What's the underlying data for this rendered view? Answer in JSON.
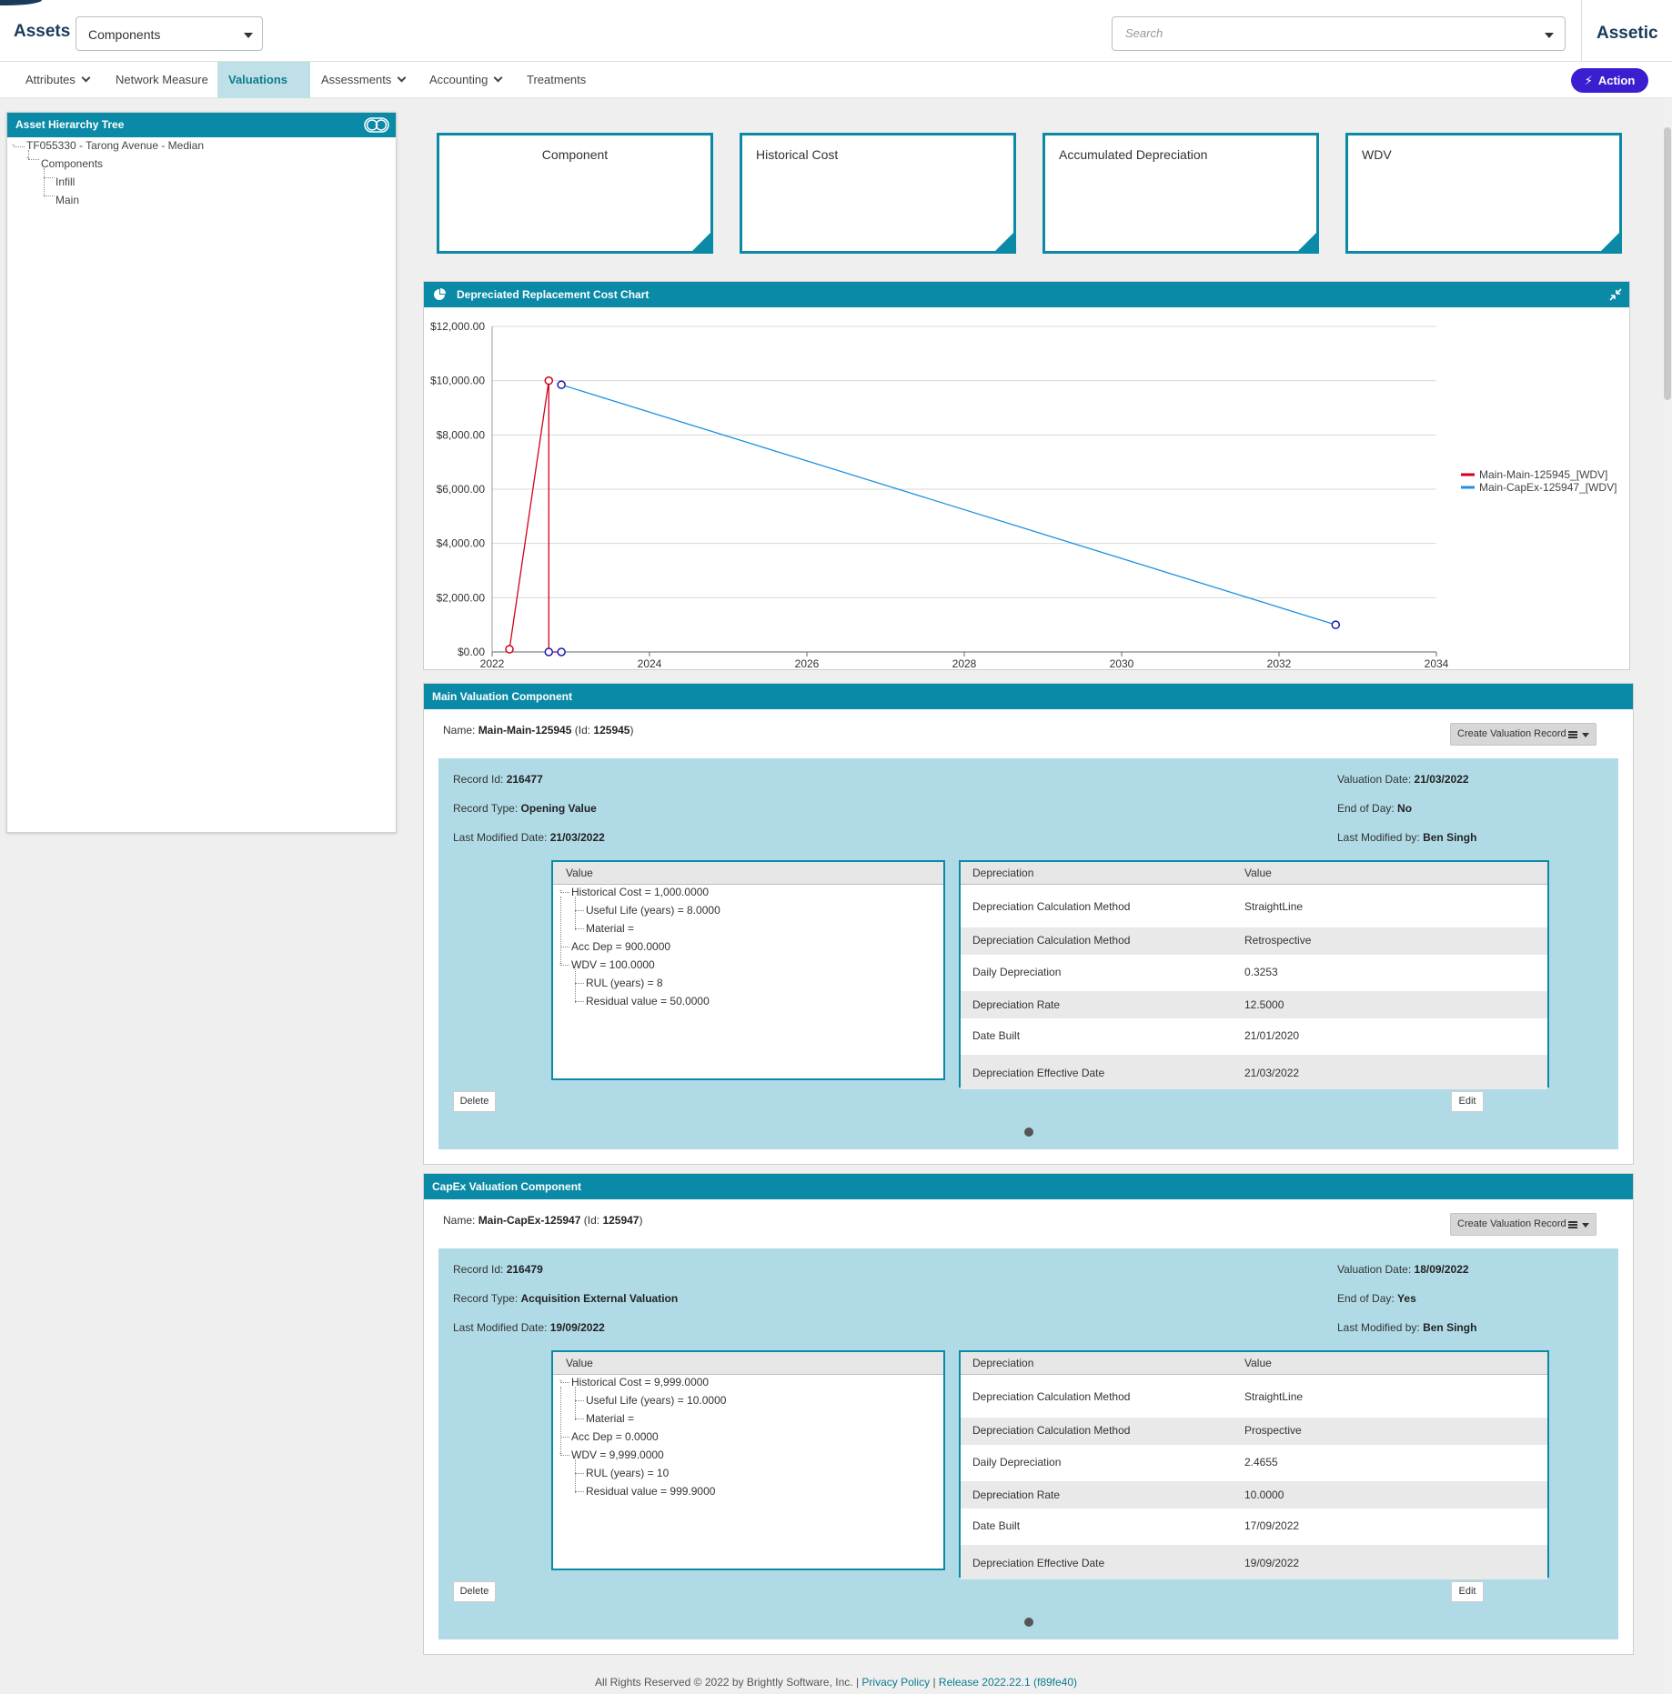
{
  "header": {
    "app_title": "Assets",
    "type_select_value": "Components",
    "search_placeholder": "Search",
    "brand": "Assetic"
  },
  "nav": {
    "items": [
      {
        "label": "Attributes",
        "has_dropdown": true
      },
      {
        "label": "Network Measure",
        "has_dropdown": false
      },
      {
        "label": "Valuations",
        "has_dropdown": true,
        "active": true
      },
      {
        "label": "Assessments",
        "has_dropdown": true
      },
      {
        "label": "Accounting",
        "has_dropdown": true
      },
      {
        "label": "Treatments",
        "has_dropdown": false
      }
    ],
    "action_label": "Action"
  },
  "tree": {
    "title": "Asset Hierarchy Tree",
    "root": "TF055330 - Tarong Avenue - Median",
    "group": "Components",
    "children": [
      "Infill",
      "Main"
    ]
  },
  "cards": [
    {
      "label": "Component"
    },
    {
      "label": "Historical Cost"
    },
    {
      "label": "Accumulated Depreciation"
    },
    {
      "label": "WDV"
    }
  ],
  "chart": {
    "title": "Depreciated Replacement Cost Chart"
  },
  "chart_data": {
    "type": "line",
    "title": "Depreciated Replacement Cost Chart",
    "xlabel": "",
    "ylabel": "",
    "xlim": [
      2022,
      2034
    ],
    "ylim": [
      0,
      12000
    ],
    "x_ticks": [
      "2022",
      "2024",
      "2026",
      "2028",
      "2030",
      "2032",
      "2034"
    ],
    "y_ticks": [
      "$0.00",
      "$2,000.00",
      "$4,000.00",
      "$6,000.00",
      "$8,000.00",
      "$10,000.00",
      "$12,000.00"
    ],
    "grid": true,
    "legend_position": "right",
    "series": [
      {
        "name": "Main-Main-125945_[WDV]",
        "color": "#d0021b",
        "points": [
          {
            "x": 2022.22,
            "y": 100
          },
          {
            "x": 2022.72,
            "y": 10000
          },
          {
            "x": 2022.72,
            "y": 0
          },
          {
            "x": 2022.88,
            "y": 0
          }
        ]
      },
      {
        "name": "Main-CapEx-125947_[WDV]",
        "color": "#1e90e0",
        "points": [
          {
            "x": 2022.88,
            "y": 9850
          },
          {
            "x": 2032.72,
            "y": 1000
          }
        ]
      }
    ],
    "marker_color": "#1b1bb0"
  },
  "components": [
    {
      "title": "Main Valuation Component",
      "name_label": "Name:",
      "name": "Main-Main-125945",
      "id_label": "Id:",
      "id": "125945",
      "create_label": "Create Valuation Record",
      "record_id_label": "Record Id:",
      "record_id": "216477",
      "record_type_label": "Record Type:",
      "record_type": "Opening Value",
      "last_modified_date_label": "Last Modified Date:",
      "last_modified_date": "21/03/2022",
      "valuation_date_label": "Valuation Date:",
      "valuation_date": "21/03/2022",
      "end_of_day_label": "End of Day:",
      "end_of_day": "No",
      "last_modified_by_label": "Last Modified by:",
      "last_modified_by": "Ben Singh",
      "value_header": "Value",
      "value_tree": {
        "historical_cost": "Historical Cost = 1,000.0000",
        "useful_life": "Useful Life (years) = 8.0000",
        "material": "Material =",
        "acc_dep": "Acc Dep = 900.0000",
        "wdv": "WDV = 100.0000",
        "rul": "RUL (years) = 8",
        "residual": "Residual value = 50.0000"
      },
      "dep_headers": [
        "Depreciation",
        "Value"
      ],
      "dep_rows": [
        [
          "Depreciation Calculation Method",
          "StraightLine"
        ],
        [
          "Depreciation Calculation Method",
          "Retrospective"
        ],
        [
          "Daily Depreciation",
          "0.3253"
        ],
        [
          "Depreciation Rate",
          "12.5000"
        ],
        [
          "Date Built",
          "21/01/2020"
        ],
        [
          "Depreciation Effective Date",
          "21/03/2022"
        ]
      ],
      "delete_label": "Delete",
      "edit_label": "Edit"
    },
    {
      "title": "CapEx Valuation Component",
      "name_label": "Name:",
      "name": "Main-CapEx-125947",
      "id_label": "Id:",
      "id": "125947",
      "create_label": "Create Valuation Record",
      "record_id_label": "Record Id:",
      "record_id": "216479",
      "record_type_label": "Record Type:",
      "record_type": "Acquisition External Valuation",
      "last_modified_date_label": "Last Modified Date:",
      "last_modified_date": "19/09/2022",
      "valuation_date_label": "Valuation Date:",
      "valuation_date": "18/09/2022",
      "end_of_day_label": "End of Day:",
      "end_of_day": "Yes",
      "last_modified_by_label": "Last Modified by:",
      "last_modified_by": "Ben Singh",
      "value_header": "Value",
      "value_tree": {
        "historical_cost": "Historical Cost = 9,999.0000",
        "useful_life": "Useful Life (years) = 10.0000",
        "material": "Material =",
        "acc_dep": "Acc Dep = 0.0000",
        "wdv": "WDV = 9,999.0000",
        "rul": "RUL (years) = 10",
        "residual": "Residual value = 999.9000"
      },
      "dep_headers": [
        "Depreciation",
        "Value"
      ],
      "dep_rows": [
        [
          "Depreciation Calculation Method",
          "StraightLine"
        ],
        [
          "Depreciation Calculation Method",
          "Prospective"
        ],
        [
          "Daily Depreciation",
          "2.4655"
        ],
        [
          "Depreciation Rate",
          "10.0000"
        ],
        [
          "Date Built",
          "17/09/2022"
        ],
        [
          "Depreciation Effective Date",
          "19/09/2022"
        ]
      ],
      "delete_label": "Delete",
      "edit_label": "Edit"
    }
  ],
  "footer": {
    "copyright": "All Rights Reserved © 2022 by Brightly Software, Inc. |",
    "privacy": "Privacy Policy",
    "sep": "|",
    "release": "Release 2022.22.1 (f89fe40)"
  },
  "colors": {
    "accent": "#0a8aa6",
    "record_bg": "#b0dbe6",
    "action": "#3a1fd1",
    "brand": "#1a3a5c"
  }
}
